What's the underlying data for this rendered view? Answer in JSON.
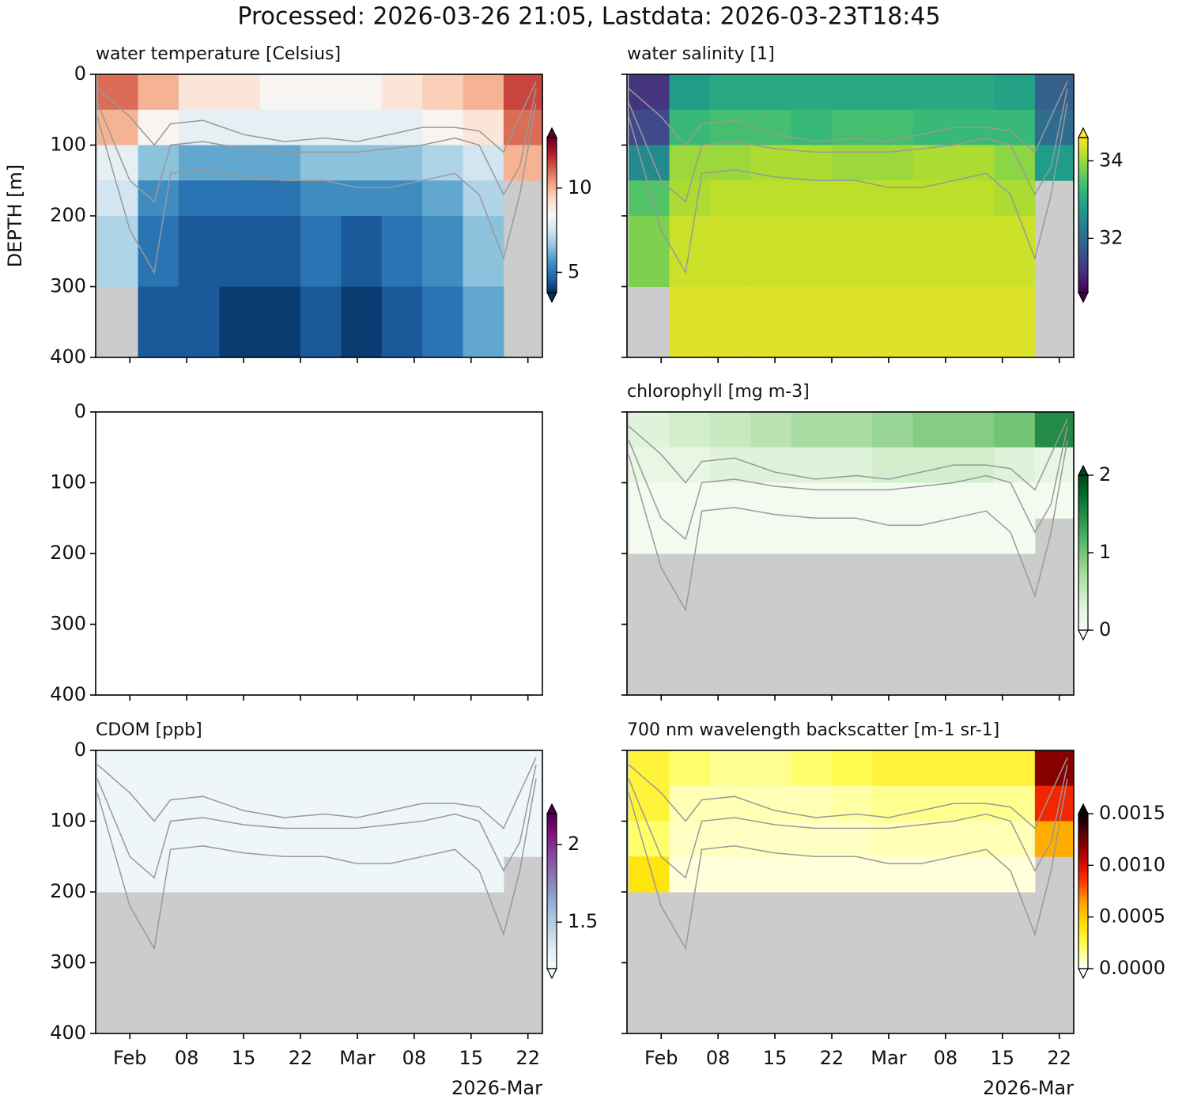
{
  "title": "Processed: 2026-03-26 21:05, Lastdata: 2026-03-23T18:45",
  "depth_label": "DEPTH [m]",
  "contours": {
    "color": "#999999",
    "x": [
      "2026-01-28",
      "2026-02-01",
      "2026-02-04",
      "2026-02-06",
      "2026-02-10",
      "2026-02-15",
      "2026-02-20",
      "2026-02-25",
      "2026-03-01",
      "2026-03-05",
      "2026-03-09",
      "2026-03-13",
      "2026-03-16",
      "2026-03-19",
      "2026-03-21",
      "2026-03-23"
    ],
    "series": [
      {
        "values": [
          20,
          60,
          100,
          70,
          65,
          85,
          95,
          90,
          95,
          85,
          75,
          75,
          80,
          110,
          60,
          10
        ]
      },
      {
        "values": [
          40,
          150,
          180,
          100,
          95,
          105,
          110,
          110,
          110,
          105,
          100,
          90,
          100,
          170,
          130,
          20
        ]
      },
      {
        "values": [
          60,
          220,
          280,
          140,
          135,
          145,
          150,
          150,
          160,
          160,
          150,
          140,
          170,
          260,
          170,
          40
        ]
      }
    ]
  },
  "chart_data": [
    {
      "type": "heatmap",
      "title": "water temperature [Celsius]",
      "colormap": "RdBu_r",
      "clim": [
        3.8,
        13.0
      ],
      "cticks": [
        5,
        10
      ],
      "missing_color": "#cccccc",
      "contour_lines": true,
      "xlim": [
        "2026-01-27T19:00",
        "2026-03-23T18:45"
      ],
      "ylim": [
        400,
        0
      ],
      "yticks": [
        0,
        100,
        200,
        300,
        400
      ],
      "xticks": [
        "2026-02-01",
        "2026-02-08",
        "2026-02-15",
        "2026-02-22",
        "2026-03-01",
        "2026-03-08",
        "2026-03-15",
        "2026-03-22"
      ],
      "x_bins": [
        "2026-01-28",
        "2026-02-02",
        "2026-02-07",
        "2026-02-12",
        "2026-02-17",
        "2026-02-22",
        "2026-02-27",
        "2026-03-04",
        "2026-03-09",
        "2026-03-14",
        "2026-03-19",
        "2026-03-23T18:45"
      ],
      "y_bins": [
        0,
        50,
        100,
        150,
        200,
        300,
        400
      ],
      "z": [
        [
          11,
          10,
          9,
          9,
          8.5,
          8.5,
          8.5,
          9,
          9.5,
          10,
          11.5
        ],
        [
          10,
          8.5,
          8,
          8,
          8,
          8,
          8,
          8,
          8.5,
          9,
          11
        ],
        [
          8,
          6.5,
          6,
          6,
          6,
          6.5,
          6.5,
          6.5,
          7,
          7.5,
          10
        ],
        [
          7.5,
          5.5,
          5,
          5,
          5,
          5.5,
          5.5,
          5.5,
          6,
          7,
          null
        ],
        [
          7,
          5,
          4.5,
          4.5,
          4.5,
          5,
          4.5,
          5,
          5.5,
          6.5,
          null
        ],
        [
          null,
          4.5,
          4.5,
          4,
          4,
          4.5,
          4,
          4.5,
          5,
          6,
          null
        ]
      ]
    },
    {
      "type": "heatmap",
      "title": "water salinity [1]",
      "colormap": "viridis",
      "clim": [
        30.6,
        34.6
      ],
      "cticks": [
        32,
        34
      ],
      "missing_color": "#cccccc",
      "contour_lines": true,
      "xlim": [
        "2026-01-27T19:00",
        "2026-03-23T18:45"
      ],
      "ylim": [
        400,
        0
      ],
      "yticks": [
        0,
        100,
        200,
        300,
        400
      ],
      "xticks": [
        "2026-02-01",
        "2026-02-08",
        "2026-02-15",
        "2026-02-22",
        "2026-03-01",
        "2026-03-08",
        "2026-03-15",
        "2026-03-22"
      ],
      "x_bins": [
        "2026-01-28",
        "2026-02-02",
        "2026-02-07",
        "2026-02-12",
        "2026-02-17",
        "2026-02-22",
        "2026-02-27",
        "2026-03-04",
        "2026-03-09",
        "2026-03-14",
        "2026-03-19",
        "2026-03-23T18:45"
      ],
      "y_bins": [
        0,
        50,
        100,
        150,
        200,
        300,
        400
      ],
      "z": [
        [
          31.2,
          32.8,
          33,
          33,
          33,
          33,
          33,
          33,
          33,
          32.9,
          31.8
        ],
        [
          31.5,
          33.3,
          33.4,
          33.4,
          33.3,
          33.4,
          33.4,
          33.3,
          33.3,
          33.3,
          32
        ],
        [
          32.5,
          34,
          34,
          34.1,
          34.1,
          34,
          34,
          34.1,
          34.1,
          33.9,
          32.8
        ],
        [
          33.5,
          34.1,
          34.2,
          34.2,
          34.2,
          34.2,
          34.2,
          34.2,
          34.2,
          34.1,
          null
        ],
        [
          33.8,
          34.3,
          34.3,
          34.3,
          34.3,
          34.3,
          34.3,
          34.3,
          34.3,
          34.3,
          null
        ],
        [
          null,
          34.4,
          34.4,
          34.4,
          34.4,
          34.4,
          34.4,
          34.4,
          34.4,
          34.4,
          null
        ]
      ]
    },
    {
      "type": "empty",
      "xlim": [
        "2026-01-27T19:00",
        "2026-03-23T18:45"
      ],
      "ylim": [
        400,
        0
      ],
      "yticks": [
        0,
        100,
        200,
        300,
        400
      ],
      "xticks": [
        "2026-02-01",
        "2026-02-08",
        "2026-02-15",
        "2026-02-22",
        "2026-03-01",
        "2026-03-08",
        "2026-03-15",
        "2026-03-22"
      ]
    },
    {
      "type": "heatmap",
      "title": "chlorophyll [mg m-3]",
      "colormap": "Greens",
      "clim": [
        0,
        2
      ],
      "cticks": [
        0,
        1,
        2
      ],
      "missing_color": "#cccccc",
      "contour_lines": true,
      "xlim": [
        "2026-01-27T19:00",
        "2026-03-23T18:45"
      ],
      "ylim": [
        400,
        0
      ],
      "yticks": [
        0,
        100,
        200,
        300,
        400
      ],
      "xticks": [
        "2026-02-01",
        "2026-02-08",
        "2026-02-15",
        "2026-02-22",
        "2026-03-01",
        "2026-03-08",
        "2026-03-15",
        "2026-03-22"
      ],
      "x_bins": [
        "2026-01-28",
        "2026-02-02",
        "2026-02-07",
        "2026-02-12",
        "2026-02-17",
        "2026-02-22",
        "2026-02-27",
        "2026-03-04",
        "2026-03-09",
        "2026-03-14",
        "2026-03-19",
        "2026-03-23T18:45"
      ],
      "y_bins": [
        0,
        50,
        100,
        150,
        200,
        300,
        400
      ],
      "z": [
        [
          0.3,
          0.4,
          0.5,
          0.6,
          0.7,
          0.7,
          0.8,
          0.9,
          0.9,
          1.0,
          1.5
        ],
        [
          0.2,
          0.2,
          0.3,
          0.3,
          0.3,
          0.3,
          0.4,
          0.4,
          0.4,
          0.3,
          0.2
        ],
        [
          0.05,
          0.05,
          0.05,
          0.05,
          0.05,
          0.05,
          0.05,
          0.05,
          0.05,
          0.05,
          0.05
        ],
        [
          0.05,
          0.05,
          0.05,
          0.05,
          0.05,
          0.05,
          0.05,
          0.05,
          0.05,
          0.05,
          null
        ],
        [
          null,
          null,
          null,
          null,
          null,
          null,
          null,
          null,
          null,
          null,
          null
        ],
        [
          null,
          null,
          null,
          null,
          null,
          null,
          null,
          null,
          null,
          null,
          null
        ]
      ]
    },
    {
      "type": "heatmap",
      "title": "CDOM [ppb]",
      "colormap": "BuPu",
      "clim": [
        1.2,
        2.2
      ],
      "cticks": [
        1.5,
        2.0
      ],
      "missing_color": "#cccccc",
      "contour_lines": true,
      "xlim": [
        "2026-01-27T19:00",
        "2026-03-23T18:45"
      ],
      "ylim": [
        400,
        0
      ],
      "yticks": [
        0,
        100,
        200,
        300,
        400
      ],
      "xticks": [
        {
          "value": "2026-02-01",
          "label": "Feb"
        },
        {
          "value": "2026-02-08",
          "label": "08"
        },
        {
          "value": "2026-02-15",
          "label": "15"
        },
        {
          "value": "2026-02-22",
          "label": "22"
        },
        {
          "value": "2026-03-01",
          "label": "Mar"
        },
        {
          "value": "2026-03-08",
          "label": "08"
        },
        {
          "value": "2026-03-15",
          "label": "15"
        },
        {
          "value": "2026-03-22",
          "label": "22"
        }
      ],
      "x_offset_label": "2026-Mar",
      "x_bins": [
        "2026-01-28",
        "2026-02-02",
        "2026-02-07",
        "2026-02-12",
        "2026-02-17",
        "2026-02-22",
        "2026-02-27",
        "2026-03-04",
        "2026-03-09",
        "2026-03-14",
        "2026-03-19",
        "2026-03-23T18:45"
      ],
      "y_bins": [
        0,
        50,
        100,
        150,
        200,
        300,
        400
      ],
      "z": [
        [
          1.25,
          1.25,
          1.25,
          1.25,
          1.25,
          1.25,
          1.25,
          1.25,
          1.25,
          1.25,
          1.25
        ],
        [
          1.25,
          1.25,
          1.25,
          1.25,
          1.25,
          1.25,
          1.25,
          1.25,
          1.25,
          1.25,
          1.25
        ],
        [
          1.25,
          1.25,
          1.25,
          1.25,
          1.25,
          1.25,
          1.25,
          1.25,
          1.25,
          1.25,
          1.25
        ],
        [
          1.25,
          1.25,
          1.25,
          1.25,
          1.25,
          1.25,
          1.25,
          1.25,
          1.25,
          1.25,
          null
        ],
        [
          null,
          null,
          null,
          null,
          null,
          null,
          null,
          null,
          null,
          null,
          null
        ],
        [
          null,
          null,
          null,
          null,
          null,
          null,
          null,
          null,
          null,
          null,
          null
        ]
      ]
    },
    {
      "type": "heatmap",
      "title": "700 nm wavelength backscatter [m-1 sr-1]",
      "colormap": "hot_r",
      "clim": [
        0,
        0.0015
      ],
      "cticks": [
        {
          "value": 0,
          "label": "0.0000"
        },
        {
          "value": 0.0005,
          "label": "0.0005"
        },
        {
          "value": 0.001,
          "label": "0.0010"
        },
        {
          "value": 0.0015,
          "label": "0.0015"
        }
      ],
      "missing_color": "#cccccc",
      "contour_lines": true,
      "xlim": [
        "2026-01-27T19:00",
        "2026-03-23T18:45"
      ],
      "ylim": [
        400,
        0
      ],
      "yticks": [
        0,
        100,
        200,
        300,
        400
      ],
      "xticks": [
        {
          "value": "2026-02-01",
          "label": "Feb"
        },
        {
          "value": "2026-02-08",
          "label": "08"
        },
        {
          "value": "2026-02-15",
          "label": "15"
        },
        {
          "value": "2026-02-22",
          "label": "22"
        },
        {
          "value": "2026-03-01",
          "label": "Mar"
        },
        {
          "value": "2026-03-08",
          "label": "08"
        },
        {
          "value": "2026-03-15",
          "label": "15"
        },
        {
          "value": "2026-03-22",
          "label": "22"
        }
      ],
      "x_offset_label": "2026-Mar",
      "x_bins": [
        "2026-01-28",
        "2026-02-02",
        "2026-02-07",
        "2026-02-12",
        "2026-02-17",
        "2026-02-22",
        "2026-02-27",
        "2026-03-04",
        "2026-03-09",
        "2026-03-14",
        "2026-03-19",
        "2026-03-23T18:45"
      ],
      "y_bins": [
        0,
        50,
        100,
        150,
        200,
        300,
        400
      ],
      "z": [
        [
          0.0003,
          0.0002,
          0.00015,
          0.00015,
          0.0002,
          0.00025,
          0.0003,
          0.0003,
          0.0003,
          0.0003,
          0.0012
        ],
        [
          0.0003,
          0.0001,
          0.0001,
          0.0001,
          0.0001,
          0.00012,
          0.00015,
          0.00015,
          0.00015,
          0.00015,
          0.0009
        ],
        [
          0.0002,
          8e-05,
          8e-05,
          8e-05,
          8e-05,
          8e-05,
          0.0001,
          0.0001,
          0.0001,
          0.0001,
          0.0006
        ],
        [
          0.0004,
          5e-05,
          5e-05,
          5e-05,
          5e-05,
          5e-05,
          5e-05,
          5e-05,
          5e-05,
          5e-05,
          null
        ],
        [
          null,
          null,
          null,
          null,
          null,
          null,
          null,
          null,
          null,
          null,
          null
        ],
        [
          null,
          null,
          null,
          null,
          null,
          null,
          null,
          null,
          null,
          null,
          null
        ]
      ]
    }
  ]
}
